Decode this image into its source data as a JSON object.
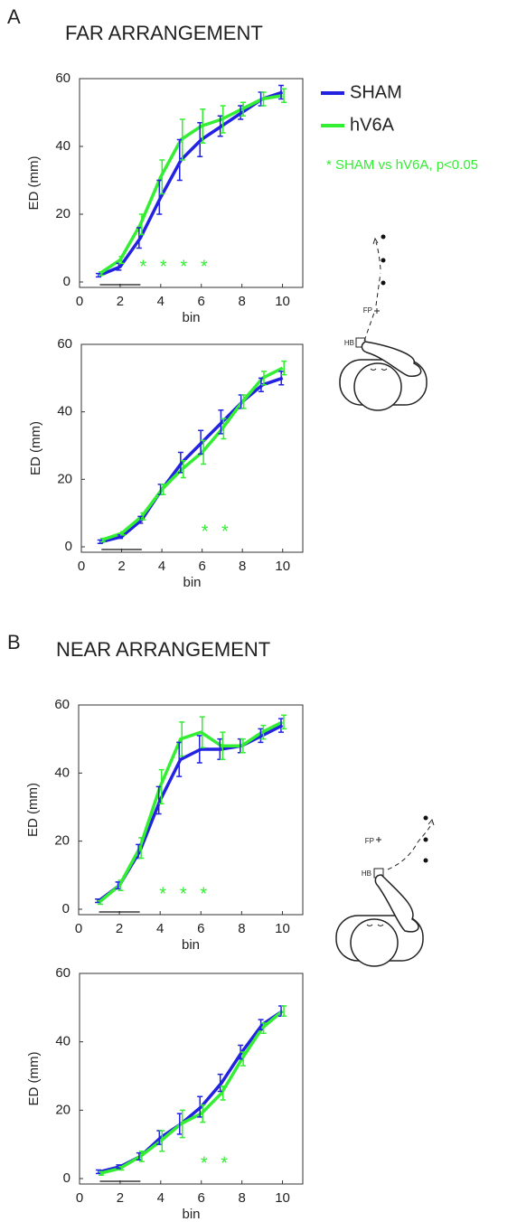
{
  "panels": [
    {
      "label": "A",
      "title": "FAR ARRANGEMENT",
      "fp": "FP",
      "hb": "HB"
    },
    {
      "label": "B",
      "title": "NEAR ARRANGEMENT",
      "fp": "FP",
      "hb": "HB"
    }
  ],
  "chart_data": [
    {
      "type": "line",
      "xlabel": "bin",
      "ylabel": "ED (mm)",
      "x": [
        1,
        2,
        3,
        4,
        5,
        6,
        7,
        8,
        9,
        10
      ],
      "xlim": [
        0,
        11
      ],
      "ylim": [
        0,
        60
      ],
      "xticks": [
        0,
        2,
        4,
        6,
        8,
        10
      ],
      "yticks": [
        0,
        20,
        40,
        60
      ],
      "series": [
        {
          "name": "SHAM",
          "color": "#2222e0",
          "values": [
            2,
            4.5,
            13,
            25,
            36,
            42,
            46,
            50,
            54,
            56
          ],
          "errors": [
            0.5,
            1,
            3,
            5,
            6,
            5,
            3,
            2,
            2,
            2
          ]
        },
        {
          "name": "hV6A",
          "color": "#33ee33",
          "values": [
            2.5,
            6.5,
            17,
            31,
            42,
            46,
            48,
            51,
            54,
            55
          ],
          "errors": [
            0.5,
            1,
            3,
            5,
            6,
            5,
            4,
            2,
            2,
            2
          ]
        }
      ],
      "sig_label": "*",
      "sig_bins": [
        3,
        4,
        5,
        6
      ],
      "baseline_bins": [
        1,
        3
      ],
      "legend": "outside right",
      "note": "* SHAM vs hV6A, p<0.05"
    },
    {
      "type": "line",
      "xlabel": "bin",
      "ylabel": "ED (mm)",
      "x": [
        1,
        2,
        3,
        4,
        5,
        6,
        7,
        8,
        9,
        10
      ],
      "xlim": [
        0,
        11
      ],
      "ylim": [
        0,
        60
      ],
      "xticks": [
        0,
        2,
        4,
        6,
        8,
        10
      ],
      "yticks": [
        0,
        20,
        40,
        60
      ],
      "series": [
        {
          "name": "SHAM",
          "color": "#2222e0",
          "values": [
            1.5,
            3,
            8,
            17,
            25,
            31,
            37,
            43,
            48,
            50
          ],
          "errors": [
            0.5,
            0.5,
            1,
            1.5,
            3,
            3.5,
            3.5,
            2,
            2,
            2
          ]
        },
        {
          "name": "hV6A",
          "color": "#33ee33",
          "values": [
            2,
            4,
            9,
            17,
            23,
            28,
            35,
            43,
            50,
            53
          ],
          "errors": [
            0.5,
            0.5,
            1,
            1.5,
            2.5,
            3.5,
            3,
            2,
            2,
            2
          ]
        }
      ],
      "sig_label": "*",
      "sig_bins": [
        6,
        7
      ],
      "baseline_bins": [
        1,
        3
      ]
    },
    {
      "type": "line",
      "xlabel": "bin",
      "ylabel": "ED (mm)",
      "x": [
        1,
        2,
        3,
        4,
        5,
        6,
        7,
        8,
        9,
        10
      ],
      "xlim": [
        0,
        11
      ],
      "ylim": [
        0,
        60
      ],
      "xticks": [
        0,
        2,
        4,
        6,
        8,
        10
      ],
      "yticks": [
        0,
        20,
        40,
        60
      ],
      "series": [
        {
          "name": "SHAM",
          "color": "#2222e0",
          "values": [
            2.5,
            7,
            17,
            32,
            44,
            47,
            47,
            48,
            51,
            54
          ],
          "errors": [
            0.5,
            1,
            2,
            4,
            5,
            4,
            3,
            2,
            2,
            2
          ]
        },
        {
          "name": "hV6A",
          "color": "#33ee33",
          "values": [
            2,
            7,
            18,
            36,
            50,
            52,
            48,
            48,
            52,
            55
          ],
          "errors": [
            0.5,
            1.5,
            3,
            5,
            5,
            4.5,
            4,
            2,
            2,
            2
          ]
        }
      ],
      "sig_label": "*",
      "sig_bins": [
        4,
        5,
        6
      ],
      "baseline_bins": [
        1,
        3
      ]
    },
    {
      "type": "line",
      "xlabel": "bin",
      "ylabel": "ED (mm)",
      "x": [
        1,
        2,
        3,
        4,
        5,
        6,
        7,
        8,
        9,
        10
      ],
      "xlim": [
        0,
        11
      ],
      "ylim": [
        0,
        60
      ],
      "xticks": [
        0,
        2,
        4,
        6,
        8,
        10
      ],
      "yticks": [
        0,
        20,
        40,
        60
      ],
      "series": [
        {
          "name": "SHAM",
          "color": "#2222e0",
          "values": [
            2,
            3.5,
            6.5,
            12,
            16,
            21,
            28,
            37,
            45,
            49
          ],
          "errors": [
            0.5,
            0.5,
            1,
            2,
            3,
            3,
            2.5,
            2,
            1.5,
            1.5
          ]
        },
        {
          "name": "hV6A",
          "color": "#33ee33",
          "values": [
            1.5,
            3,
            6.5,
            11,
            16,
            19,
            25,
            35,
            44,
            49
          ],
          "errors": [
            0.5,
            0.5,
            1.5,
            3,
            4,
            2.5,
            2,
            2,
            1.5,
            1.5
          ]
        }
      ],
      "sig_label": "*",
      "sig_bins": [
        6,
        7
      ],
      "baseline_bins": [
        1,
        3
      ]
    }
  ]
}
